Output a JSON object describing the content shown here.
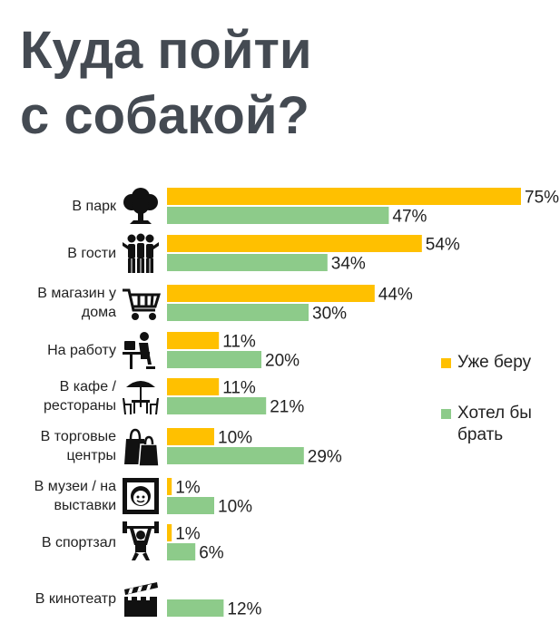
{
  "title_line1": "Куда пойти",
  "title_line2": "с собакой?",
  "colors": {
    "already": "#FFC000",
    "would_like": "#8DCB8A",
    "title": "#444a52"
  },
  "legend": {
    "already": "Уже беру",
    "would_like": "Хотел бы брать"
  },
  "icons": [
    "tree-icon",
    "people-icon",
    "shopping-cart-icon",
    "desk-worker-icon",
    "cafe-table-umbrella-icon",
    "shopping-bags-icon",
    "framed-portrait-icon",
    "weightlifter-icon",
    "clapperboard-icon"
  ],
  "chart_data": {
    "type": "bar",
    "orientation": "horizontal",
    "title": "Куда пойти с собакой?",
    "categories": [
      "В парк",
      "В гости",
      "В магазин у дома",
      "На работу",
      "В кафе / рестораны",
      "В торговые центры",
      "В музеи / на выставки",
      "В спортзал",
      "В кинотеатр"
    ],
    "category_lines": [
      [
        "В парк"
      ],
      [
        "В гости"
      ],
      [
        "В магазин у",
        "дома"
      ],
      [
        "На работу"
      ],
      [
        "В кафе /",
        "рестораны"
      ],
      [
        "В торговые",
        "центры"
      ],
      [
        "В музеи / на",
        "выставки"
      ],
      [
        "В спортзал"
      ],
      [
        "В кинотеатр"
      ]
    ],
    "series": [
      {
        "name": "Уже беру",
        "values": [
          75,
          54,
          44,
          11,
          11,
          10,
          1,
          1,
          null
        ],
        "labels": [
          "75%",
          "54%",
          "44%",
          "11%",
          "11%",
          "10%",
          "1%",
          "1%",
          ""
        ]
      },
      {
        "name": "Хотел бы брать",
        "values": [
          47,
          34,
          30,
          20,
          21,
          29,
          10,
          6,
          12
        ],
        "labels": [
          "47%",
          "34%",
          "30%",
          "20%",
          "21%",
          "29%",
          "10%",
          "6%",
          "12%"
        ]
      }
    ],
    "xlim": [
      0,
      100
    ],
    "grid": false,
    "legend_position": "right"
  }
}
